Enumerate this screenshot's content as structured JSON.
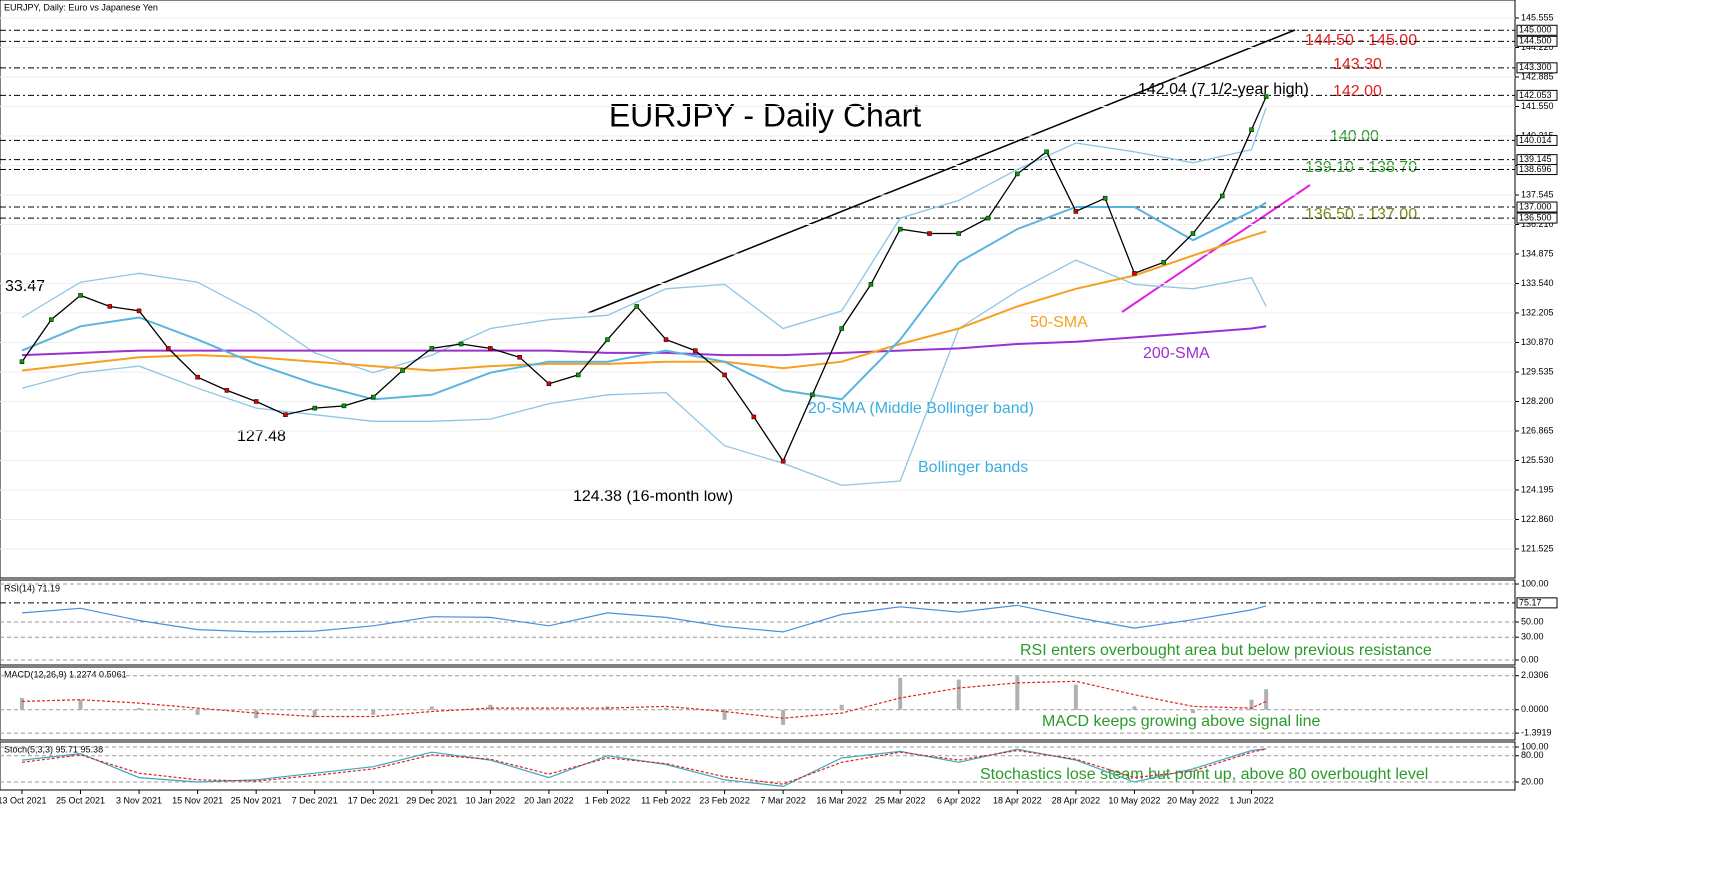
{
  "chart_data": [
    {
      "type": "line",
      "title": "EURJPY, Daily:  Euro vs Japanese Yen",
      "heading": "EURJPY - Daily Chart",
      "xlim": [
        -3,
        204
      ],
      "xticks": [
        {
          "value": 0,
          "label": "13 Oct 2021"
        },
        {
          "value": 8,
          "label": "25 Oct 2021"
        },
        {
          "value": 16,
          "label": "3 Nov 2021"
        },
        {
          "value": 24,
          "label": "15 Nov 2021"
        },
        {
          "value": 32,
          "label": "25 Nov 2021"
        },
        {
          "value": 40,
          "label": "7 Dec 2021"
        },
        {
          "value": 48,
          "label": "17 Dec 2021"
        },
        {
          "value": 56,
          "label": "29 Dec 2021"
        },
        {
          "value": 64,
          "label": "10 Jan 2022"
        },
        {
          "value": 72,
          "label": "20 Jan 2022"
        },
        {
          "value": 80,
          "label": "1 Feb 2022"
        },
        {
          "value": 88,
          "label": "11 Feb 2022"
        },
        {
          "value": 96,
          "label": "23 Feb 2022"
        },
        {
          "value": 104,
          "label": "7 Mar 2022"
        },
        {
          "value": 112,
          "label": "16 Mar 2022"
        },
        {
          "value": 120,
          "label": "25 Mar 2022"
        },
        {
          "value": 128,
          "label": "6 Apr 2022"
        },
        {
          "value": 136,
          "label": "18 Apr 2022"
        },
        {
          "value": 144,
          "label": "28 Apr 2022"
        },
        {
          "value": 152,
          "label": "10 May 2022"
        },
        {
          "value": 160,
          "label": "20 May 2022"
        },
        {
          "value": 168,
          "label": "1 Jun 2022"
        }
      ],
      "ylim": [
        120.21,
        146.37
      ],
      "yticks": [
        121.525,
        {
          "value": 122.86,
          "label": "122.860"
        },
        124.195,
        {
          "value": 125.53,
          "label": "125.530"
        },
        126.865,
        {
          "value": 128.2,
          "label": "128.200"
        },
        129.535,
        {
          "value": 130.87,
          "label": "130.870"
        },
        132.205,
        {
          "value": 133.54,
          "label": "133.540"
        },
        134.875,
        {
          "value": 136.21,
          "label": "136.210"
        },
        137.545,
        {
          "value": 138.88,
          "label": "138.880"
        },
        140.215,
        {
          "value": 141.55,
          "label": "141.550"
        },
        142.885,
        {
          "value": 144.22,
          "label": "144.220"
        },
        145.555
      ],
      "levels": [
        {
          "value": 145,
          "label": "145.000"
        },
        {
          "value": 144.5,
          "label": "144.500"
        },
        {
          "value": 143.3,
          "label": "143.300"
        },
        142.053,
        140.014,
        139.145,
        138.696,
        {
          "value": 137,
          "label": "137.000"
        },
        {
          "value": 136.5,
          "label": "136.500"
        }
      ],
      "price": {
        "color": "#000000",
        "x": [
          0,
          4,
          8,
          12,
          16,
          20,
          24,
          28,
          32,
          36,
          40,
          44,
          48,
          52,
          56,
          60,
          64,
          68,
          72,
          76,
          80,
          84,
          88,
          92,
          96,
          100,
          104,
          108,
          112,
          116,
          120,
          124,
          128,
          132,
          136,
          140,
          144,
          148,
          152,
          156,
          160,
          164,
          168,
          170
        ],
        "values": [
          130.0,
          131.9,
          133.0,
          132.5,
          132.3,
          130.6,
          129.3,
          128.7,
          128.2,
          127.6,
          127.9,
          128.0,
          128.4,
          129.6,
          130.6,
          130.8,
          130.6,
          130.2,
          129.0,
          129.4,
          131.0,
          132.5,
          131.0,
          130.5,
          129.4,
          127.5,
          125.5,
          128.5,
          131.5,
          133.5,
          136.0,
          135.8,
          135.8,
          136.5,
          138.5,
          139.5,
          136.8,
          137.4,
          134.0,
          134.5,
          135.8,
          137.5,
          140.5,
          142.0
        ]
      },
      "x": [
        0,
        8,
        16,
        24,
        32,
        40,
        48,
        56,
        64,
        72,
        80,
        88,
        96,
        104,
        112,
        120,
        128,
        136,
        144,
        152,
        160,
        168,
        170
      ],
      "series": [
        {
          "name": "200-SMA",
          "color": "#9b30d0",
          "values": [
            130.3,
            130.4,
            130.5,
            130.5,
            130.5,
            130.5,
            130.5,
            130.5,
            130.5,
            130.5,
            130.4,
            130.4,
            130.3,
            130.3,
            130.4,
            130.5,
            130.6,
            130.8,
            130.9,
            131.1,
            131.3,
            131.5,
            131.6
          ]
        },
        {
          "name": "50-SMA",
          "color": "#f5a020",
          "values": [
            129.6,
            129.9,
            130.2,
            130.3,
            130.2,
            130.0,
            129.8,
            129.6,
            129.8,
            129.9,
            129.9,
            130.0,
            130.0,
            129.7,
            130.0,
            130.8,
            131.5,
            132.5,
            133.3,
            133.9,
            134.8,
            135.7,
            135.9
          ]
        },
        {
          "name": "20-SMA (Middle Bollinger band)",
          "color": "#5ab4e0",
          "values": [
            130.5,
            131.6,
            132.0,
            131.0,
            129.9,
            129.0,
            128.3,
            128.5,
            129.5,
            130.0,
            130.0,
            130.5,
            130.0,
            128.7,
            128.3,
            131.0,
            134.5,
            136.0,
            137.0,
            137.0,
            135.5,
            136.8,
            137.2
          ]
        }
      ],
      "bands": {
        "name": "Bollinger bands",
        "color": "#8cc6e6",
        "upper": [
          132.0,
          133.6,
          134.0,
          133.6,
          132.2,
          130.4,
          129.5,
          130.3,
          131.5,
          131.9,
          132.1,
          133.3,
          133.5,
          131.5,
          132.3,
          136.5,
          137.3,
          138.7,
          139.9,
          139.5,
          139.0,
          139.6,
          141.5
        ],
        "lower": [
          128.8,
          129.5,
          129.8,
          128.8,
          127.9,
          127.6,
          127.3,
          127.3,
          127.4,
          128.1,
          128.5,
          128.6,
          126.2,
          125.4,
          124.4,
          124.6,
          131.5,
          133.2,
          134.6,
          133.5,
          133.3,
          133.8,
          132.5
        ]
      },
      "annotations": [
        "33.47",
        "127.48",
        "124.38 (16-month low)",
        "142.04 (7 1/2-year high)",
        "144.50 - 145.00",
        "143.30",
        "142.00",
        "140.00",
        "139.10 - 138.70",
        "136.50 - 137.00"
      ]
    },
    {
      "type": "line",
      "title": "RSI(14) 71.19",
      "note": "RSI enters overbought area but below previous resistance",
      "ylim": [
        -6.6,
        105.3
      ],
      "yticks": [
        {
          "value": 100,
          "label": "100.00"
        },
        {
          "value": 50,
          "label": "50.00"
        },
        {
          "value": 30,
          "label": "30.00"
        },
        {
          "value": 0,
          "label": "0.00"
        }
      ],
      "levels": [
        75.17
      ],
      "x": [
        0,
        8,
        16,
        24,
        32,
        40,
        48,
        56,
        64,
        72,
        80,
        88,
        96,
        104,
        112,
        120,
        128,
        136,
        144,
        152,
        160,
        168,
        170
      ],
      "series": [
        {
          "color": "#4a90d9",
          "kind": "line",
          "values": [
            62,
            68,
            52,
            40,
            37,
            38,
            45,
            57,
            56,
            45,
            62,
            56,
            44,
            37,
            60,
            70,
            63,
            72,
            56,
            42,
            53,
            66,
            71.19
          ]
        }
      ]
    },
    {
      "type": "line",
      "title": "MACD(12,26,9) 1.2274 0.5061",
      "note": "MACD keeps growing above signal line",
      "ylim": [
        -1.8,
        2.55
      ],
      "yticks": [
        2.0306,
        {
          "value": 0,
          "label": "0.0000"
        },
        -1.3919
      ],
      "levels": [],
      "x": [
        0,
        8,
        16,
        24,
        32,
        40,
        48,
        56,
        64,
        72,
        80,
        88,
        96,
        104,
        112,
        120,
        128,
        136,
        144,
        152,
        160,
        168,
        170
      ],
      "series": [
        {
          "color": "#b0b0b0",
          "kind": "bar",
          "values": [
            0.7,
            0.6,
            0.1,
            -0.3,
            -0.5,
            -0.45,
            -0.3,
            0.2,
            0.3,
            0.0,
            0.2,
            0.1,
            -0.6,
            -0.9,
            0.3,
            1.9,
            1.8,
            2.0,
            1.5,
            0.2,
            -0.2,
            0.6,
            1.2274
          ]
        },
        {
          "color": "#e02020",
          "kind": "dashed",
          "values": [
            0.5,
            0.6,
            0.4,
            0.1,
            -0.2,
            -0.4,
            -0.4,
            -0.1,
            0.1,
            0.1,
            0.1,
            0.2,
            -0.1,
            -0.5,
            -0.2,
            0.7,
            1.3,
            1.6,
            1.7,
            0.9,
            0.2,
            0.1,
            0.5061
          ]
        }
      ]
    },
    {
      "type": "line",
      "title": "Stoch(5,3,3) 95.71 95.38",
      "note": "Stochastics lose steam but point up, above 80 overbought level",
      "ylim": [
        1.7,
        111.4
      ],
      "yticks": [
        {
          "value": 100,
          "label": "100.00"
        },
        {
          "value": 80,
          "label": "80.00"
        },
        {
          "value": 20,
          "label": "20.00"
        }
      ],
      "levels": [],
      "x": [
        0,
        8,
        16,
        24,
        32,
        40,
        48,
        56,
        64,
        72,
        80,
        88,
        96,
        104,
        112,
        120,
        128,
        136,
        144,
        152,
        160,
        168,
        170
      ],
      "series": [
        {
          "color": "#3aa8c0",
          "kind": "line",
          "values": [
            70,
            85,
            30,
            20,
            25,
            40,
            55,
            88,
            70,
            30,
            80,
            60,
            25,
            10,
            75,
            90,
            65,
            95,
            70,
            20,
            50,
            92,
            95.71
          ]
        },
        {
          "color": "#e02020",
          "kind": "dashed",
          "values": [
            65,
            82,
            40,
            25,
            22,
            35,
            50,
            82,
            72,
            38,
            75,
            62,
            32,
            15,
            65,
            88,
            70,
            92,
            72,
            30,
            45,
            88,
            95.38
          ]
        }
      ]
    }
  ]
}
